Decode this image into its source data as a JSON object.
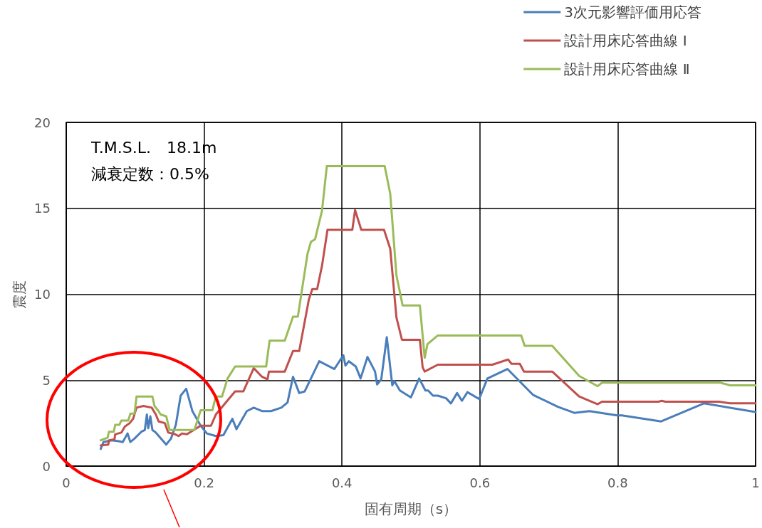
{
  "chart_data": {
    "type": "line",
    "xlabel": "固有周期（s）",
    "ylabel": "震度",
    "xlim": [
      0,
      1
    ],
    "xticks": [
      0,
      0.2,
      0.4,
      0.6,
      0.8,
      1
    ],
    "ylim": [
      0,
      20
    ],
    "yticks": [
      0,
      5,
      10,
      15,
      20
    ],
    "grid": true,
    "legend": "top right",
    "marker": "none",
    "line_style": "solid",
    "annotations": [
      "T.M.S.L.　18.1m",
      "減衰定数：0.5%"
    ],
    "series": [
      {
        "name": "3次元影響評価用応答",
        "color": "#4a7ebb",
        "x": [
          0.05,
          0.054,
          0.066,
          0.076,
          0.082,
          0.089,
          0.093,
          0.099,
          0.109,
          0.114,
          0.117,
          0.119,
          0.122,
          0.125,
          0.13,
          0.145,
          0.152,
          0.159,
          0.166,
          0.174,
          0.183,
          0.195,
          0.204,
          0.217,
          0.228,
          0.241,
          0.247,
          0.262,
          0.272,
          0.284,
          0.297,
          0.312,
          0.321,
          0.329,
          0.338,
          0.346,
          0.367,
          0.389,
          0.402,
          0.405,
          0.41,
          0.42,
          0.427,
          0.437,
          0.448,
          0.451,
          0.457,
          0.465,
          0.473,
          0.476,
          0.484,
          0.5,
          0.512,
          0.521,
          0.525,
          0.532,
          0.539,
          0.551,
          0.558,
          0.567,
          0.574,
          0.582,
          0.599,
          0.611,
          0.64,
          0.677,
          0.713,
          0.737,
          0.759,
          0.799,
          0.806,
          0.863,
          0.925,
          1.0
        ],
        "values": [
          1.0,
          1.4,
          1.5,
          1.45,
          1.4,
          1.9,
          1.4,
          1.6,
          2.0,
          2.1,
          3.0,
          2.2,
          2.9,
          2.1,
          1.95,
          1.25,
          1.6,
          2.4,
          4.1,
          4.5,
          3.2,
          2.35,
          1.9,
          1.75,
          1.8,
          2.75,
          2.15,
          3.2,
          3.4,
          3.2,
          3.2,
          3.4,
          3.7,
          5.2,
          4.25,
          4.35,
          6.1,
          5.65,
          6.45,
          5.85,
          6.1,
          5.8,
          5.1,
          6.35,
          5.5,
          4.75,
          5.05,
          7.5,
          4.7,
          4.95,
          4.4,
          4.0,
          5.1,
          4.4,
          4.4,
          4.1,
          4.1,
          3.95,
          3.65,
          4.25,
          3.8,
          4.3,
          3.9,
          5.1,
          5.65,
          4.15,
          3.45,
          3.1,
          3.2,
          2.95,
          2.95,
          2.6,
          3.65,
          3.15
        ]
      },
      {
        "name": "設計用床応答曲線 Ⅰ",
        "color": "#c0504d",
        "x": [
          0.05,
          0.061,
          0.062,
          0.07,
          0.071,
          0.08,
          0.085,
          0.092,
          0.097,
          0.102,
          0.112,
          0.124,
          0.13,
          0.134,
          0.143,
          0.148,
          0.158,
          0.163,
          0.168,
          0.175,
          0.183,
          0.195,
          0.21,
          0.217,
          0.245,
          0.257,
          0.272,
          0.284,
          0.292,
          0.294,
          0.317,
          0.329,
          0.338,
          0.352,
          0.357,
          0.364,
          0.371,
          0.379,
          0.415,
          0.419,
          0.428,
          0.461,
          0.47,
          0.479,
          0.487,
          0.513,
          0.517,
          0.52,
          0.539,
          0.618,
          0.641,
          0.646,
          0.658,
          0.664,
          0.705,
          0.744,
          0.771,
          0.777,
          0.859,
          0.864,
          0.869,
          0.947,
          0.963,
          1.0
        ],
        "values": [
          1.2,
          1.25,
          1.5,
          1.55,
          1.85,
          1.95,
          2.3,
          2.5,
          2.75,
          3.4,
          3.5,
          3.4,
          3.0,
          2.6,
          2.5,
          1.95,
          1.85,
          1.75,
          1.9,
          1.85,
          2.05,
          2.35,
          2.35,
          3.0,
          4.35,
          4.35,
          5.7,
          5.2,
          5.05,
          5.5,
          5.5,
          6.7,
          6.7,
          9.7,
          10.3,
          10.3,
          11.65,
          13.75,
          13.75,
          14.9,
          13.75,
          13.75,
          12.65,
          8.65,
          7.35,
          7.35,
          5.75,
          5.5,
          5.9,
          5.9,
          6.2,
          5.95,
          5.95,
          5.5,
          5.5,
          4.05,
          3.6,
          3.75,
          3.75,
          3.8,
          3.75,
          3.75,
          3.65,
          3.65
        ]
      },
      {
        "name": "設計用床応答曲線 Ⅱ",
        "color": "#9bbb59",
        "x": [
          0.05,
          0.06,
          0.062,
          0.069,
          0.071,
          0.077,
          0.08,
          0.09,
          0.093,
          0.099,
          0.102,
          0.125,
          0.128,
          0.133,
          0.137,
          0.145,
          0.15,
          0.186,
          0.195,
          0.212,
          0.217,
          0.226,
          0.234,
          0.245,
          0.29,
          0.295,
          0.317,
          0.329,
          0.336,
          0.35,
          0.355,
          0.361,
          0.371,
          0.378,
          0.462,
          0.47,
          0.479,
          0.488,
          0.513,
          0.52,
          0.524,
          0.539,
          0.66,
          0.665,
          0.705,
          0.744,
          0.771,
          0.777,
          0.949,
          0.963,
          1.0
        ],
        "values": [
          1.5,
          1.65,
          2.0,
          2.0,
          2.4,
          2.4,
          2.65,
          2.65,
          3.05,
          3.05,
          4.05,
          4.05,
          3.5,
          3.25,
          3.0,
          2.9,
          2.1,
          2.1,
          3.25,
          3.25,
          4.05,
          4.05,
          5.1,
          5.8,
          5.8,
          7.3,
          7.3,
          8.7,
          8.7,
          12.35,
          13.05,
          13.2,
          14.85,
          17.45,
          17.45,
          15.85,
          11.1,
          9.35,
          9.35,
          6.3,
          7.1,
          7.6,
          7.6,
          7.0,
          7.0,
          5.25,
          4.65,
          4.85,
          4.85,
          4.7,
          4.7
        ]
      }
    ]
  }
}
